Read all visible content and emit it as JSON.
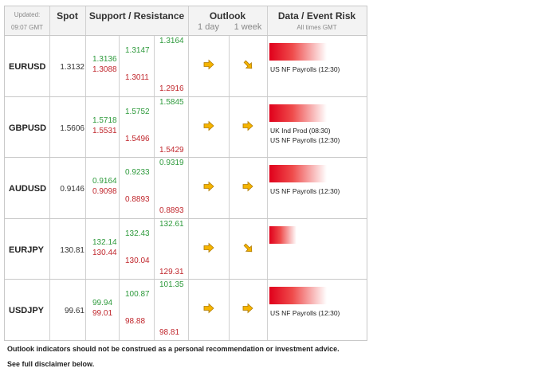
{
  "header": {
    "updated_label": "Updated:",
    "updated_time": "09:07 GMT",
    "spot": "Spot",
    "support_resistance": "Support / Resistance",
    "outlook": "Outlook",
    "outlook_1day": "1 day",
    "outlook_1week": "1 week",
    "data_event_risk": "Data / Event Risk",
    "all_times": "All times GMT"
  },
  "rows": [
    {
      "pair": "EURUSD",
      "spot": "1.3132",
      "r1": "1.3136",
      "s1": "1.3088",
      "r2": "1.3147",
      "s2": "1.3011",
      "r3": "1.3164",
      "s3": "1.2916",
      "day": "right-arrow-icon",
      "week": "down-right-arrow-icon",
      "risk": 0.95,
      "events": [
        "US NF Payrolls (12:30)"
      ]
    },
    {
      "pair": "GBPUSD",
      "spot": "1.5606",
      "r1": "1.5718",
      "s1": "1.5531",
      "r2": "1.5752",
      "s2": "1.5496",
      "r3": "1.5845",
      "s3": "1.5429",
      "day": "right-arrow-icon",
      "week": "right-arrow-icon",
      "risk": 0.95,
      "events": [
        "UK Ind Prod (08:30)",
        "US NF Payrolls (12:30)"
      ]
    },
    {
      "pair": "AUDUSD",
      "spot": "0.9146",
      "r1": "0.9164",
      "s1": "0.9098",
      "r2": "0.9233",
      "s2": "0.8893",
      "r3": "0.9319",
      "s3": "0.8893",
      "day": "right-arrow-icon",
      "week": "right-arrow-icon",
      "risk": 0.95,
      "events": [
        "US NF Payrolls (12:30)"
      ]
    },
    {
      "pair": "EURJPY",
      "spot": "130.81",
      "r1": "132.14",
      "s1": "130.44",
      "r2": "132.43",
      "s2": "130.04",
      "r3": "132.61",
      "s3": "129.31",
      "day": "right-arrow-icon",
      "week": "down-right-arrow-icon",
      "risk": 0.45,
      "events": []
    },
    {
      "pair": "USDJPY",
      "spot": "99.61",
      "r1": "99.94",
      "s1": "99.01",
      "r2": "100.87",
      "s2": "98.88",
      "r3": "101.35",
      "s3": "98.81",
      "day": "right-arrow-icon",
      "week": "right-arrow-icon",
      "risk": 0.95,
      "events": [
        "US NF Payrolls (12:30)"
      ]
    }
  ],
  "footer": {
    "line1": "Outlook indicators should not be construed as a personal recommendation or investment advice.",
    "line2": "See full disclaimer below."
  },
  "colors": {
    "resistance": "#2e9a3c",
    "support": "#c0272d",
    "arrow_fill": "#f5b400",
    "risk_bar": "#e0001b"
  }
}
